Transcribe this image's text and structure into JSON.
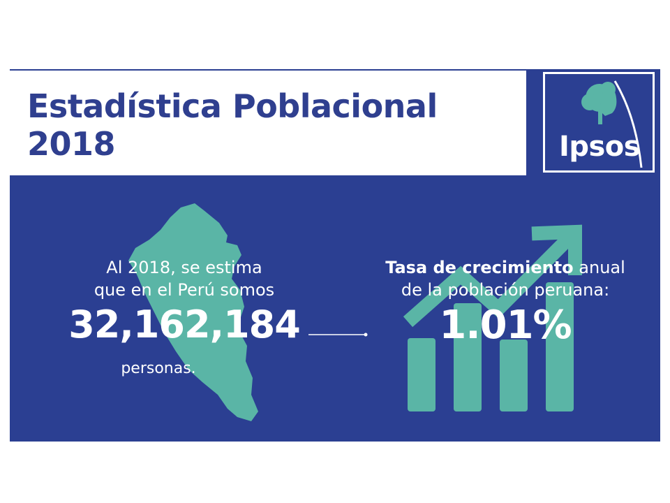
{
  "header": {
    "title_line1": "Estadística Poblacional",
    "title_line2": "2018"
  },
  "logo": {
    "text": "Ipsos"
  },
  "left_stat": {
    "line1": "Al 2018, se estima",
    "line2": "que en el Perú somos",
    "value": "32,162,184",
    "unit": "personas."
  },
  "right_stat": {
    "label_bold": "Tasa de crecimiento",
    "label_rest": " anual",
    "line2": "de la población peruana:",
    "value": "1.01%"
  },
  "colors": {
    "background": "#2b3f92",
    "title": "#2f3f8f",
    "accent": "#5ab5a6",
    "text": "#ffffff"
  }
}
